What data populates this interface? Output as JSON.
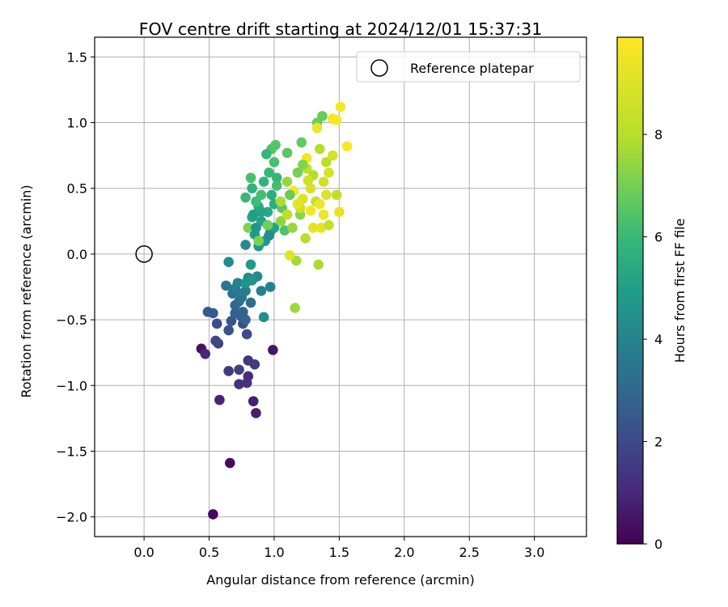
{
  "chart_data": {
    "type": "scatter",
    "title": "FOV centre drift starting at 2024/12/01 15:37:31",
    "xlabel": "Angular distance from reference (arcmin)",
    "ylabel": "Rotation from reference (arcmin)",
    "xlim": [
      -0.38,
      3.4
    ],
    "ylim": [
      -2.15,
      1.65
    ],
    "xticks": [
      "0.0",
      "0.5",
      "1.0",
      "1.5",
      "2.0",
      "2.5",
      "3.0"
    ],
    "yticks": [
      "−2.0",
      "−1.5",
      "−1.0",
      "−0.5",
      "0.0",
      "0.5",
      "1.0",
      "1.5"
    ],
    "grid": true,
    "legend": {
      "placement": "top-right",
      "entries": [
        "Reference platepar"
      ]
    },
    "reference_point": {
      "x": 0.0,
      "y": 0.0,
      "marker": "open circle"
    },
    "colorbar": {
      "label": "Hours from first FF file",
      "colormap": "viridis",
      "range": [
        0,
        9.9
      ],
      "ticks": [
        "0",
        "2",
        "4",
        "6",
        "8"
      ]
    },
    "series": [
      {
        "points": [
          [
            0.53,
            -1.98,
            0.2
          ],
          [
            0.66,
            -1.59,
            0.3
          ],
          [
            0.44,
            -0.72,
            0.4
          ],
          [
            0.99,
            -0.73,
            0.5
          ],
          [
            0.86,
            -1.21,
            0.7
          ],
          [
            0.84,
            -1.12,
            0.8
          ],
          [
            0.58,
            -1.11,
            0.9
          ],
          [
            0.47,
            -0.76,
            1.0
          ],
          [
            0.8,
            -0.93,
            1.1
          ],
          [
            0.73,
            -0.99,
            1.2
          ],
          [
            0.79,
            -0.98,
            1.3
          ],
          [
            0.8,
            -0.81,
            1.4
          ],
          [
            0.65,
            -0.89,
            1.5
          ],
          [
            0.85,
            -0.84,
            1.6
          ],
          [
            0.73,
            -0.88,
            1.7
          ],
          [
            0.57,
            -0.68,
            1.8
          ],
          [
            0.55,
            -0.66,
            1.9
          ],
          [
            0.79,
            -0.61,
            2.0
          ],
          [
            0.56,
            -0.53,
            2.1
          ],
          [
            0.76,
            -0.53,
            2.2
          ],
          [
            0.65,
            -0.58,
            2.3
          ],
          [
            0.67,
            -0.51,
            2.4
          ],
          [
            0.49,
            -0.44,
            2.5
          ],
          [
            0.53,
            -0.45,
            2.6
          ],
          [
            0.74,
            -0.47,
            2.7
          ],
          [
            0.76,
            -0.44,
            2.8
          ],
          [
            0.78,
            -0.5,
            2.9
          ],
          [
            0.7,
            -0.39,
            3.0
          ],
          [
            0.73,
            -0.36,
            3.1
          ],
          [
            0.82,
            -0.37,
            3.2
          ],
          [
            0.68,
            -0.3,
            3.3
          ],
          [
            0.75,
            -0.33,
            3.4
          ],
          [
            0.63,
            -0.24,
            3.5
          ],
          [
            0.7,
            -0.26,
            3.6
          ],
          [
            0.78,
            -0.28,
            3.7
          ],
          [
            0.9,
            -0.28,
            3.8
          ],
          [
            0.97,
            -0.25,
            3.9
          ],
          [
            0.72,
            -0.22,
            4.0
          ],
          [
            0.8,
            -0.18,
            4.1
          ],
          [
            0.87,
            -0.17,
            4.2
          ],
          [
            0.65,
            -0.06,
            4.3
          ],
          [
            0.92,
            -0.48,
            4.4
          ],
          [
            0.83,
            -0.2,
            4.5
          ],
          [
            0.78,
            -0.22,
            4.6
          ],
          [
            0.88,
            0.06,
            4.7
          ],
          [
            0.93,
            0.1,
            4.8
          ],
          [
            0.85,
            0.15,
            4.9
          ],
          [
            0.97,
            0.17,
            5.0
          ],
          [
            1.0,
            0.2,
            5.1
          ],
          [
            0.9,
            0.25,
            5.2
          ],
          [
            0.83,
            0.28,
            5.3
          ],
          [
            0.95,
            0.32,
            5.4
          ],
          [
            0.88,
            0.36,
            5.5
          ],
          [
            1.0,
            0.38,
            5.6
          ],
          [
            0.83,
            0.5,
            5.7
          ],
          [
            0.92,
            0.55,
            5.8
          ],
          [
            1.02,
            0.58,
            5.9
          ],
          [
            0.96,
            0.62,
            6.0
          ],
          [
            0.86,
            0.4,
            6.1
          ],
          [
            0.9,
            0.45,
            6.2
          ],
          [
            1.0,
            0.7,
            6.3
          ],
          [
            0.98,
            0.8,
            6.4
          ],
          [
            1.01,
            0.83,
            6.5
          ],
          [
            1.1,
            0.77,
            6.6
          ],
          [
            1.21,
            0.85,
            6.7
          ],
          [
            1.37,
            1.05,
            6.8
          ],
          [
            1.33,
            1.0,
            6.9
          ],
          [
            0.95,
            0.22,
            7.0
          ],
          [
            0.88,
            0.1,
            7.1
          ],
          [
            0.8,
            0.2,
            7.2
          ],
          [
            1.2,
            0.3,
            7.3
          ],
          [
            1.05,
            0.25,
            7.4
          ],
          [
            1.1,
            0.55,
            7.5
          ],
          [
            1.16,
            -0.41,
            7.6
          ],
          [
            1.17,
            -0.05,
            7.7
          ],
          [
            1.34,
            -0.08,
            7.8
          ],
          [
            1.3,
            0.6,
            7.9
          ],
          [
            1.35,
            0.8,
            8.0
          ],
          [
            1.4,
            0.7,
            8.1
          ],
          [
            1.48,
            0.45,
            8.2
          ],
          [
            1.25,
            0.65,
            8.3
          ],
          [
            1.32,
            0.4,
            8.4
          ],
          [
            1.2,
            0.35,
            8.5
          ],
          [
            1.38,
            0.55,
            8.6
          ],
          [
            1.45,
            0.75,
            8.7
          ],
          [
            1.42,
            0.62,
            8.8
          ],
          [
            1.28,
            0.5,
            8.9
          ],
          [
            1.22,
            0.42,
            9.0
          ],
          [
            1.12,
            -0.01,
            9.1
          ],
          [
            1.3,
            0.2,
            9.2
          ],
          [
            1.5,
            0.32,
            9.3
          ],
          [
            1.38,
            0.3,
            9.4
          ],
          [
            1.33,
            0.96,
            9.5
          ],
          [
            1.45,
            1.03,
            9.6
          ],
          [
            1.51,
            1.12,
            9.7
          ],
          [
            1.56,
            0.82,
            9.8
          ],
          [
            1.48,
            1.02,
            9.8
          ],
          [
            1.25,
            0.73,
            9.7
          ],
          [
            1.15,
            0.48,
            9.6
          ],
          [
            1.35,
            0.38,
            9.5
          ],
          [
            0.78,
            0.43,
            6.0
          ],
          [
            0.82,
            0.58,
            6.3
          ],
          [
            0.94,
            0.76,
            5.9
          ],
          [
            1.02,
            0.52,
            6.2
          ],
          [
            1.12,
            0.45,
            6.8
          ],
          [
            1.18,
            0.62,
            7.0
          ],
          [
            1.06,
            0.35,
            6.6
          ],
          [
            1.22,
            0.68,
            7.2
          ],
          [
            0.9,
            0.32,
            5.2
          ],
          [
            0.84,
            0.3,
            5.0
          ],
          [
            0.98,
            0.45,
            5.6
          ],
          [
            1.08,
            0.18,
            6.4
          ],
          [
            1.14,
            0.2,
            7.5
          ],
          [
            1.24,
            0.12,
            8.0
          ],
          [
            1.26,
            0.56,
            8.6
          ],
          [
            1.4,
            0.45,
            9.0
          ],
          [
            1.36,
            0.2,
            9.3
          ],
          [
            1.42,
            0.22,
            8.4
          ],
          [
            1.18,
            0.38,
            9.2
          ],
          [
            1.28,
            0.33,
            9.6
          ],
          [
            1.05,
            0.4,
            7.8
          ],
          [
            1.1,
            0.3,
            8.2
          ],
          [
            0.96,
            0.14,
            4.4
          ],
          [
            0.86,
            0.2,
            4.6
          ],
          [
            0.78,
            0.07,
            4.3
          ],
          [
            0.82,
            -0.08,
            4.8
          ],
          [
            0.75,
            -0.3,
            3.6
          ],
          [
            0.7,
            -0.45,
            2.7
          ]
        ]
      }
    ]
  }
}
